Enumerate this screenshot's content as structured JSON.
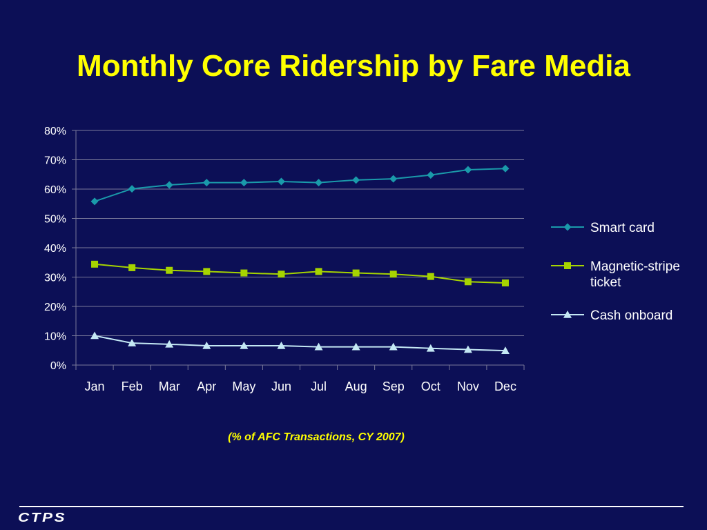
{
  "slide": {
    "title": "Monthly Core Ridership by Fare Media",
    "caption": "(% of AFC Transactions, CY 2007)",
    "logo_text": "CTPS"
  },
  "chart_data": {
    "type": "line",
    "title": "",
    "xlabel": "",
    "ylabel": "",
    "categories": [
      "Jan",
      "Feb",
      "Mar",
      "Apr",
      "May",
      "Jun",
      "Jul",
      "Aug",
      "Sep",
      "Oct",
      "Nov",
      "Dec"
    ],
    "ylim": [
      0,
      80
    ],
    "y_ticks": [
      0,
      10,
      20,
      30,
      40,
      50,
      60,
      70,
      80
    ],
    "y_tick_labels": [
      "0%",
      "10%",
      "20%",
      "30%",
      "40%",
      "50%",
      "60%",
      "70%",
      "80%"
    ],
    "grid": "horizontal",
    "legend_position": "right",
    "series": [
      {
        "name": "Smart card",
        "marker": "diamond",
        "color": "#1a9aaa",
        "values": [
          55.8,
          60.1,
          61.4,
          62.2,
          62.2,
          62.6,
          62.2,
          63.1,
          63.5,
          64.8,
          66.6,
          67.0
        ]
      },
      {
        "name": "Magnetic-stripe ticket",
        "marker": "square",
        "color": "#a6d400",
        "values": [
          34.4,
          33.2,
          32.3,
          31.9,
          31.4,
          31.0,
          31.9,
          31.4,
          31.0,
          30.2,
          28.4,
          28.0
        ]
      },
      {
        "name": "Cash onboard",
        "marker": "triangle",
        "color": "#c4e8f4",
        "values": [
          10.0,
          7.5,
          7.1,
          6.6,
          6.6,
          6.6,
          6.2,
          6.2,
          6.2,
          5.7,
          5.3,
          4.9
        ]
      }
    ]
  },
  "colors": {
    "background": "#0c0f56",
    "title": "#ffff00",
    "text": "#ffffff",
    "grid": "#7a7a9a"
  }
}
